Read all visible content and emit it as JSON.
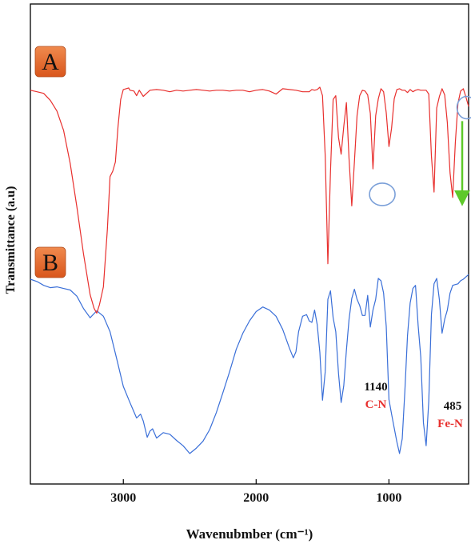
{
  "chart_data": {
    "type": "line",
    "xlabel": "Wavenubmber (cm⁻¹)",
    "ylabel": "Transmittance (a.u)",
    "xlim": [
      3700,
      400
    ],
    "x_ticks": [
      3000,
      2000,
      1000
    ],
    "x_tick_labels": [
      "3000",
      "2000",
      "1000"
    ],
    "x_reversed": true,
    "y_ticks_shown": false,
    "grid": false,
    "series": [
      {
        "name": "A",
        "color": "#3a6fd8",
        "x": [
          3700,
          3650,
          3600,
          3550,
          3500,
          3450,
          3400,
          3350,
          3300,
          3250,
          3200,
          3150,
          3100,
          3050,
          3000,
          2950,
          2900,
          2870,
          2850,
          2820,
          2800,
          2780,
          2750,
          2700,
          2650,
          2600,
          2550,
          2500,
          2450,
          2400,
          2350,
          2300,
          2250,
          2200,
          2150,
          2100,
          2050,
          2000,
          1950,
          1900,
          1850,
          1800,
          1750,
          1720,
          1700,
          1680,
          1650,
          1620,
          1600,
          1580,
          1560,
          1540,
          1520,
          1500,
          1480,
          1460,
          1440,
          1420,
          1400,
          1380,
          1360,
          1340,
          1320,
          1300,
          1280,
          1260,
          1240,
          1220,
          1200,
          1180,
          1160,
          1140,
          1120,
          1100,
          1080,
          1060,
          1040,
          1020,
          1000,
          980,
          960,
          940,
          920,
          900,
          880,
          860,
          840,
          820,
          800,
          780,
          760,
          740,
          720,
          700,
          680,
          660,
          640,
          620,
          600,
          580,
          560,
          540,
          520,
          500,
          480,
          460,
          440,
          420,
          400
        ],
        "y": [
          50.0,
          49.4,
          48.4,
          47.8,
          48.0,
          47.6,
          47.2,
          45.6,
          42.4,
          40.0,
          41.8,
          40.4,
          36.4,
          29.4,
          22.2,
          18.0,
          14.0,
          15.0,
          13.2,
          9.0,
          10.6,
          11.2,
          8.8,
          10.2,
          9.8,
          8.2,
          6.8,
          4.8,
          6.2,
          8.0,
          11.0,
          15.4,
          20.6,
          26.0,
          31.8,
          36.0,
          39.2,
          41.6,
          42.8,
          42.0,
          40.4,
          37.0,
          32.2,
          29.6,
          31.2,
          36.4,
          40.4,
          40.8,
          39.2,
          38.8,
          42.0,
          38.2,
          31.0,
          18.6,
          26.0,
          44.8,
          47.0,
          40.0,
          36.4,
          25.6,
          18.0,
          22.4,
          31.6,
          39.6,
          45.0,
          47.4,
          44.8,
          43.2,
          40.6,
          40.6,
          45.8,
          37.6,
          42.0,
          44.8,
          50.2,
          49.6,
          46.4,
          37.8,
          18.8,
          15.0,
          11.4,
          7.8,
          4.8,
          8.6,
          21.0,
          35.4,
          43.8,
          47.6,
          48.4,
          38.0,
          29.8,
          12.8,
          6.8,
          18.4,
          40.8,
          48.8,
          50.2,
          44.6,
          36.0,
          39.6,
          42.0,
          46.4,
          48.4,
          48.6,
          48.8,
          49.6,
          50.0,
          50.6,
          51.2
        ]
      },
      {
        "name": "B",
        "color": "#e8302e",
        "x": [
          3700,
          3650,
          3600,
          3550,
          3500,
          3450,
          3400,
          3350,
          3300,
          3250,
          3220,
          3200,
          3180,
          3150,
          3120,
          3100,
          3080,
          3060,
          3040,
          3020,
          3000,
          2980,
          2960,
          2950,
          2920,
          2900,
          2880,
          2850,
          2800,
          2750,
          2700,
          2650,
          2600,
          2550,
          2500,
          2450,
          2400,
          2350,
          2300,
          2250,
          2200,
          2150,
          2100,
          2050,
          2000,
          1950,
          1900,
          1850,
          1800,
          1750,
          1700,
          1650,
          1600,
          1580,
          1560,
          1540,
          1520,
          1500,
          1480,
          1460,
          1440,
          1420,
          1400,
          1380,
          1360,
          1340,
          1320,
          1300,
          1280,
          1260,
          1240,
          1220,
          1200,
          1180,
          1160,
          1140,
          1120,
          1100,
          1080,
          1060,
          1040,
          1020,
          1000,
          980,
          960,
          940,
          920,
          900,
          880,
          860,
          840,
          820,
          800,
          780,
          760,
          740,
          720,
          700,
          680,
          660,
          640,
          620,
          600,
          580,
          560,
          540,
          520,
          500,
          480,
          460,
          440,
          420,
          400
        ],
        "y": [
          99.0,
          98.6,
          98.2,
          96.4,
          93.6,
          88.6,
          80.0,
          68.8,
          56.6,
          46.0,
          42.4,
          41.2,
          43.4,
          48.0,
          63.0,
          76.6,
          78.0,
          80.4,
          89.6,
          96.6,
          99.2,
          99.4,
          99.6,
          99.0,
          98.8,
          97.6,
          99.0,
          97.4,
          99.0,
          99.2,
          99.0,
          98.6,
          99.0,
          98.8,
          99.0,
          99.2,
          99.0,
          98.8,
          99.0,
          99.0,
          98.8,
          99.0,
          99.0,
          98.6,
          99.0,
          99.2,
          98.8,
          98.0,
          99.4,
          99.2,
          99.0,
          98.6,
          98.6,
          99.2,
          99.0,
          99.2,
          99.8,
          97.6,
          82.0,
          54.0,
          78.0,
          96.6,
          97.6,
          86.8,
          82.4,
          89.6,
          95.8,
          81.2,
          69.0,
          80.4,
          92.4,
          97.6,
          99.0,
          98.8,
          97.8,
          93.0,
          78.6,
          92.4,
          96.8,
          99.4,
          98.6,
          93.2,
          84.4,
          89.2,
          96.8,
          99.2,
          99.4,
          99.0,
          99.0,
          98.4,
          99.2,
          98.6,
          99.0,
          99.2,
          99.0,
          99.0,
          99.0,
          98.0,
          82.0,
          72.6,
          94.4,
          97.4,
          99.4,
          97.8,
          90.6,
          77.6,
          71.2,
          85.4,
          95.6,
          98.8,
          99.4,
          97.2,
          94.8
        ]
      }
    ],
    "annotations": [
      {
        "marker": "circle",
        "x": 1050,
        "y": 72.0
      },
      {
        "marker": "circle",
        "x": 415,
        "y": 94.5
      },
      {
        "marker": "green-arrow",
        "x_from": 400,
        "y_from": 91.0,
        "y_to": 71.0
      }
    ]
  },
  "panel_labels": {
    "a": "A",
    "b": "B"
  },
  "annotation_labels": {
    "cn_value": "1140",
    "cn_bond": "C-N",
    "fen_value": "485",
    "fen_bond": "Fe-N"
  },
  "colors": {
    "series_a": "#3a6fd8",
    "series_b": "#e8302e",
    "badge": "#e8682c",
    "arrow": "#5ec92a",
    "circle": "#7a9fd8",
    "label_red": "#e8302e"
  }
}
